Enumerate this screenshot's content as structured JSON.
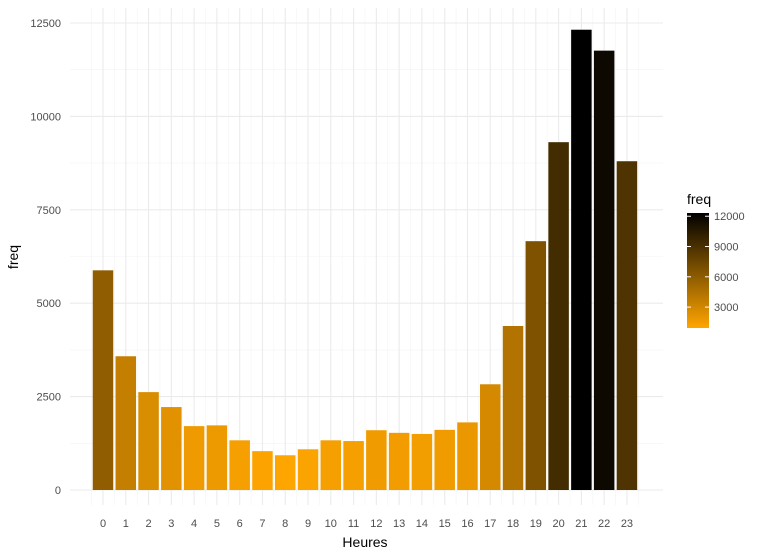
{
  "chart_data": {
    "type": "bar",
    "title": "",
    "xlabel": "Heures",
    "ylabel": "freq",
    "categories": [
      "0",
      "1",
      "2",
      "3",
      "4",
      "5",
      "6",
      "7",
      "8",
      "9",
      "10",
      "11",
      "12",
      "13",
      "14",
      "15",
      "16",
      "17",
      "18",
      "19",
      "20",
      "21",
      "22",
      "23"
    ],
    "values": [
      5880,
      3580,
      2620,
      2220,
      1710,
      1730,
      1330,
      1040,
      930,
      1090,
      1330,
      1310,
      1600,
      1530,
      1500,
      1610,
      1810,
      2830,
      4390,
      6660,
      9310,
      12320,
      11760,
      8800
    ],
    "ylim": [
      0,
      12500
    ],
    "y_ticks": [
      0,
      2500,
      5000,
      7500,
      10000,
      12500
    ],
    "y_tick_labels": [
      "0",
      "2500",
      "5000",
      "7500",
      "10000",
      "12500"
    ],
    "grid": true,
    "legend": {
      "title": "freq",
      "position": "right",
      "type": "colorbar",
      "ticks": [
        3000,
        6000,
        9000,
        12000
      ],
      "tick_labels": [
        "3000",
        "6000",
        "9000",
        "12000"
      ],
      "range": [
        930,
        12320
      ],
      "low_color": "#ffa500",
      "high_color": "#000000"
    }
  }
}
